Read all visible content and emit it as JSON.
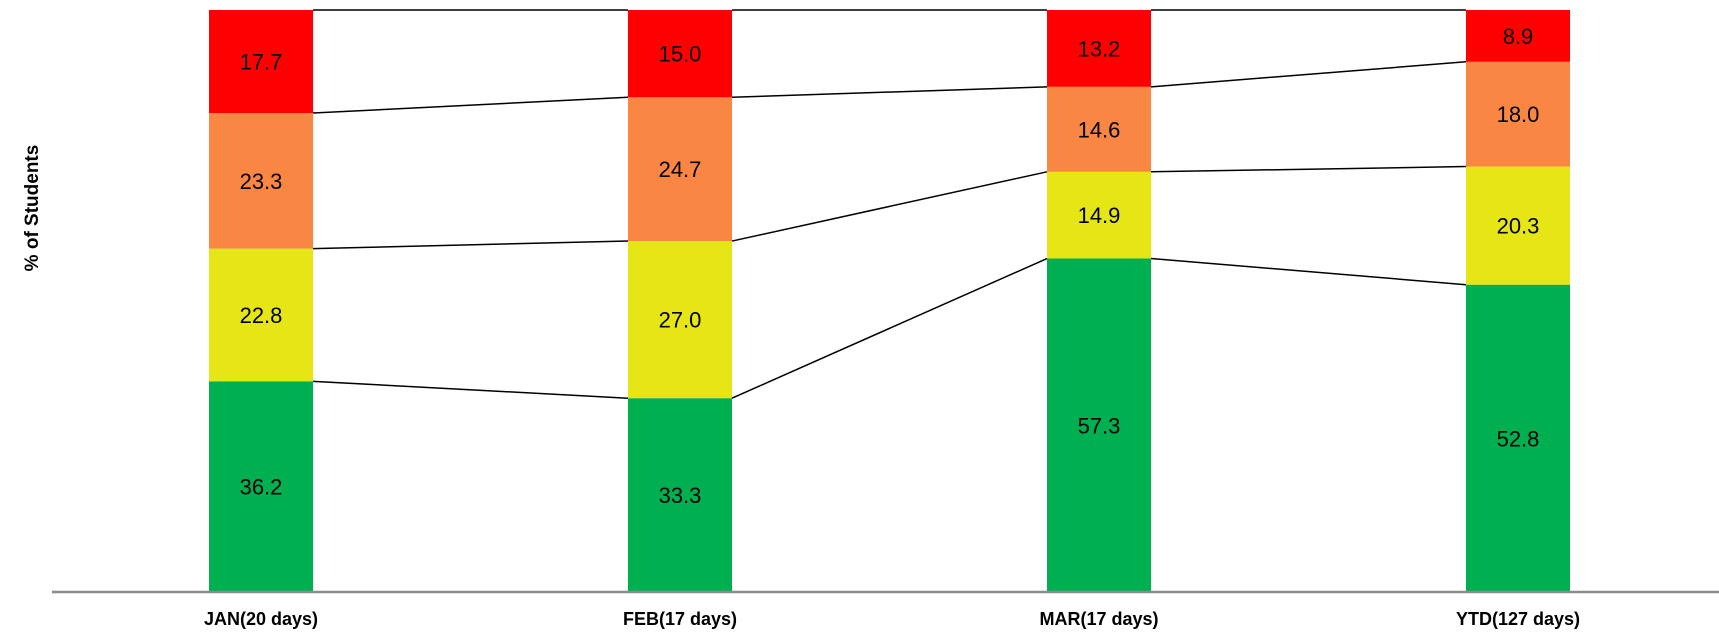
{
  "chart_data": {
    "type": "bar",
    "stacked": true,
    "ylabel": "% of Students",
    "xlabel": "",
    "categories": [
      "JAN(20 days)",
      "FEB(17 days)",
      "MAR(17 days)",
      "YTD(127 days)"
    ],
    "ylim": [
      0,
      100
    ],
    "series_connector_lines": true,
    "series": [
      {
        "color": "#00B050",
        "values": [
          36.2,
          33.3,
          57.3,
          52.8
        ]
      },
      {
        "color": "#E6E617",
        "values": [
          22.8,
          27.0,
          14.9,
          20.3
        ]
      },
      {
        "color": "#FA8644",
        "values": [
          23.3,
          24.7,
          14.6,
          18.0
        ]
      },
      {
        "color": "#FF0000",
        "values": [
          17.7,
          15.0,
          13.2,
          8.9
        ]
      }
    ]
  }
}
